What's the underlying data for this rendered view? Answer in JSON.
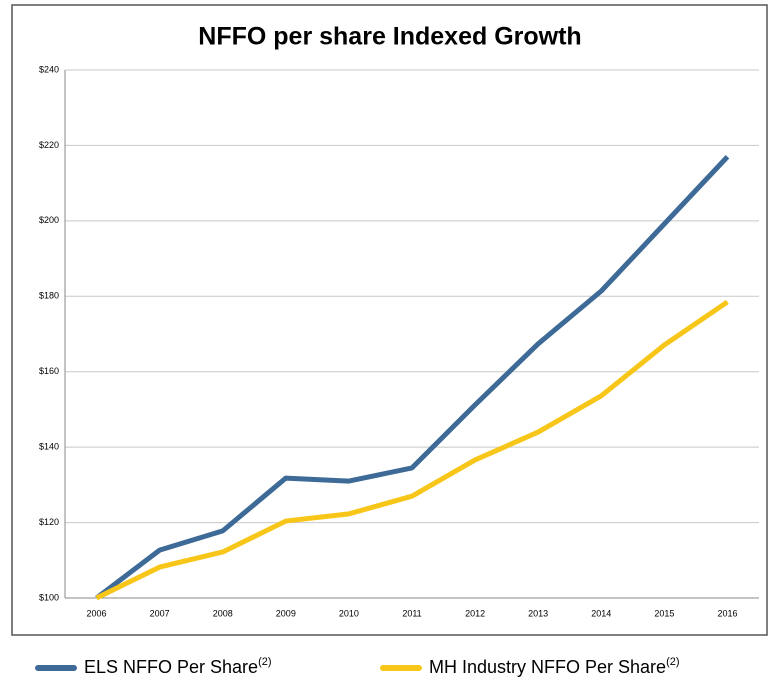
{
  "chart_data": {
    "type": "line",
    "title": "NFFO per share Indexed Growth",
    "categories": [
      "2006",
      "2007",
      "2008",
      "2009",
      "2010",
      "2011",
      "2012",
      "2013",
      "2014",
      "2015",
      "2016"
    ],
    "series": [
      {
        "name": "ELS NFFO Per Share",
        "name_superscript": "(2)",
        "color": "#3d6a96",
        "values": [
          100,
          112.7,
          117.8,
          131.8,
          131,
          134.5,
          151.2,
          167.4,
          181.4,
          199.2,
          217
        ]
      },
      {
        "name": "MH Industry NFFO Per Share",
        "name_superscript": "(2)",
        "color": "#f7c619",
        "values": [
          100,
          108.2,
          112.2,
          120.4,
          122.3,
          127,
          136.6,
          144,
          153.6,
          167.1,
          178.5
        ]
      }
    ],
    "ylim": [
      100,
      240
    ],
    "yticks": [
      {
        "value": 100,
        "label": "$100"
      },
      {
        "value": 120,
        "label": "$120"
      },
      {
        "value": 140,
        "label": "$140"
      },
      {
        "value": 160,
        "label": "$160"
      },
      {
        "value": 180,
        "label": "$180"
      },
      {
        "value": 200,
        "label": "$200"
      },
      {
        "value": 220,
        "label": "$220"
      },
      {
        "value": 240,
        "label": "$240"
      }
    ],
    "grid": true
  }
}
